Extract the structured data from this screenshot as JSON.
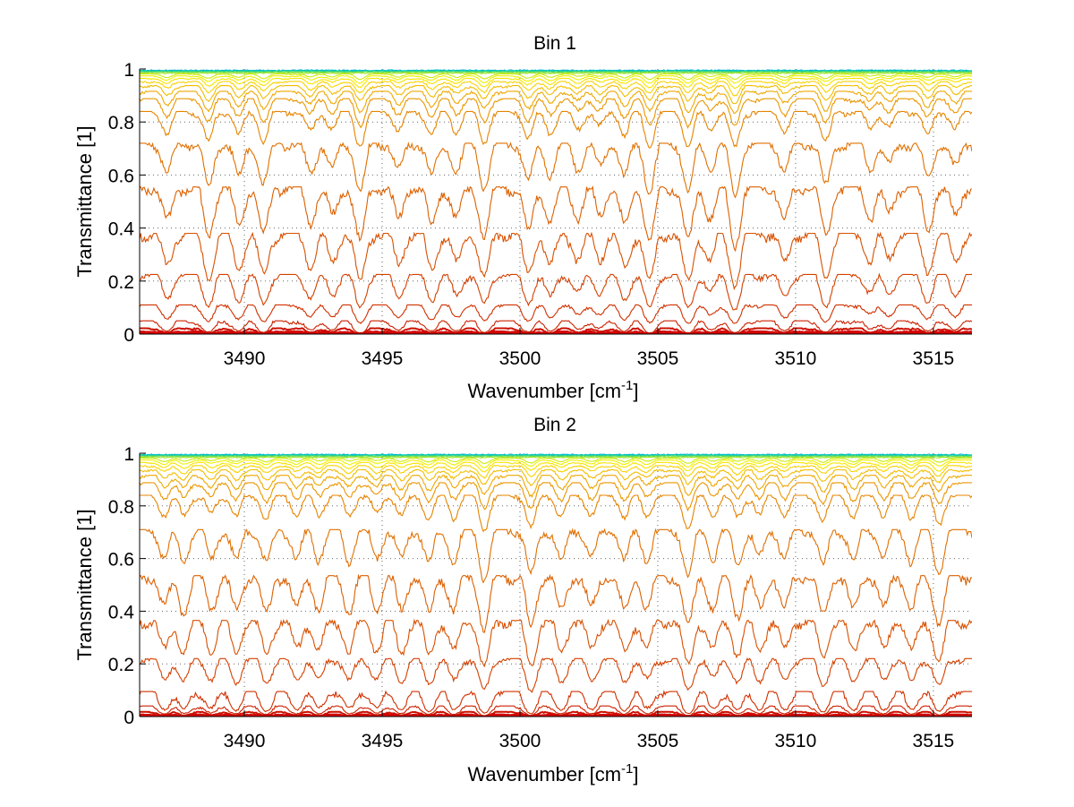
{
  "figure": {
    "background": "#ffffff",
    "grid": "dotted",
    "colormap": "jet-like (red at low transmittance, orange, yellow, green, cyan/blue near 1)"
  },
  "chart_data": [
    {
      "type": "line",
      "title": "Bin 1",
      "xlabel": "Wavenumber [cm",
      "xlabel_sup": "-1",
      "xlabel_close": "]",
      "ylabel": "Transmittance [1]",
      "xlim": [
        3486.2,
        3516.4
      ],
      "ylim": [
        0,
        1
      ],
      "xticks": [
        3490,
        3495,
        3500,
        3505,
        3510,
        3515
      ],
      "xtick_labels": [
        "3490",
        "3495",
        "3500",
        "3505",
        "3510",
        "3515"
      ],
      "yticks": [
        0,
        0.2,
        0.4,
        0.6,
        0.8,
        1
      ],
      "ytick_labels": [
        "0",
        "0.2",
        "0.4",
        "0.6",
        "0.8",
        "1"
      ],
      "grid": true,
      "absorption_lines_cm-1": [
        {
          "x": 3487.2,
          "d": 0.55
        },
        {
          "x": 3488.7,
          "d": 0.8
        },
        {
          "x": 3489.8,
          "d": 0.6
        },
        {
          "x": 3490.7,
          "d": 0.75
        },
        {
          "x": 3492.4,
          "d": 0.55
        },
        {
          "x": 3493.2,
          "d": 0.45
        },
        {
          "x": 3494.2,
          "d": 0.9
        },
        {
          "x": 3495.6,
          "d": 0.5
        },
        {
          "x": 3496.8,
          "d": 0.6
        },
        {
          "x": 3497.7,
          "d": 0.5
        },
        {
          "x": 3498.7,
          "d": 0.8
        },
        {
          "x": 3500.3,
          "d": 0.7
        },
        {
          "x": 3501.1,
          "d": 0.55
        },
        {
          "x": 3502.1,
          "d": 0.45
        },
        {
          "x": 3502.9,
          "d": 0.4
        },
        {
          "x": 3503.8,
          "d": 0.6
        },
        {
          "x": 3504.7,
          "d": 0.9
        },
        {
          "x": 3506.1,
          "d": 0.9
        },
        {
          "x": 3506.9,
          "d": 0.45
        },
        {
          "x": 3507.8,
          "d": 1.0
        },
        {
          "x": 3509.6,
          "d": 0.5
        },
        {
          "x": 3511.1,
          "d": 0.8
        },
        {
          "x": 3512.7,
          "d": 0.45
        },
        {
          "x": 3513.4,
          "d": 0.4
        },
        {
          "x": 3514.8,
          "d": 0.65
        },
        {
          "x": 3515.8,
          "d": 0.45
        }
      ],
      "series": [
        {
          "baseline": 0.997,
          "color": "#00b4dc"
        },
        {
          "baseline": 0.995,
          "color": "#00c8b4"
        },
        {
          "baseline": 0.993,
          "color": "#28d28c"
        },
        {
          "baseline": 0.99,
          "color": "#6edc50"
        },
        {
          "baseline": 0.986,
          "color": "#a0e628"
        },
        {
          "baseline": 0.981,
          "color": "#cdeb14"
        },
        {
          "baseline": 0.974,
          "color": "#f0f000"
        },
        {
          "baseline": 0.965,
          "color": "#f8e400"
        },
        {
          "baseline": 0.953,
          "color": "#f8d200"
        },
        {
          "baseline": 0.937,
          "color": "#f2bd00"
        },
        {
          "baseline": 0.916,
          "color": "#eea800"
        },
        {
          "baseline": 0.888,
          "color": "#ea9600"
        },
        {
          "baseline": 0.84,
          "color": "#e68400"
        },
        {
          "baseline": 0.72,
          "color": "#e07000"
        },
        {
          "baseline": 0.555,
          "color": "#dc6000"
        },
        {
          "baseline": 0.38,
          "color": "#d85000"
        },
        {
          "baseline": 0.225,
          "color": "#d44000"
        },
        {
          "baseline": 0.11,
          "color": "#d03000"
        },
        {
          "baseline": 0.05,
          "color": "#cc2000"
        },
        {
          "baseline": 0.022,
          "color": "#cc1000"
        },
        {
          "baseline": 0.01,
          "color": "#d00000"
        },
        {
          "baseline": 0.004,
          "color": "#e00000"
        }
      ]
    },
    {
      "type": "line",
      "title": "Bin 2",
      "xlabel": "Wavenumber [cm",
      "xlabel_sup": "-1",
      "xlabel_close": "]",
      "ylabel": "Transmittance [1]",
      "xlim": [
        3486.2,
        3516.4
      ],
      "ylim": [
        0,
        1
      ],
      "xticks": [
        3490,
        3495,
        3500,
        3505,
        3510,
        3515
      ],
      "xtick_labels": [
        "3490",
        "3495",
        "3500",
        "3505",
        "3510",
        "3515"
      ],
      "yticks": [
        0,
        0.2,
        0.4,
        0.6,
        0.8,
        1
      ],
      "ytick_labels": [
        "0",
        "0.2",
        "0.4",
        "0.6",
        "0.8",
        "1"
      ],
      "grid": true,
      "absorption_lines_cm-1": [
        {
          "x": 3487.1,
          "d": 0.5
        },
        {
          "x": 3487.8,
          "d": 0.55
        },
        {
          "x": 3488.8,
          "d": 0.5
        },
        {
          "x": 3489.7,
          "d": 0.55
        },
        {
          "x": 3490.8,
          "d": 0.6
        },
        {
          "x": 3491.9,
          "d": 0.5
        },
        {
          "x": 3492.7,
          "d": 0.5
        },
        {
          "x": 3493.8,
          "d": 0.55
        },
        {
          "x": 3494.8,
          "d": 0.5
        },
        {
          "x": 3495.7,
          "d": 0.55
        },
        {
          "x": 3496.7,
          "d": 0.6
        },
        {
          "x": 3497.6,
          "d": 0.55
        },
        {
          "x": 3498.7,
          "d": 0.9
        },
        {
          "x": 3500.4,
          "d": 0.85
        },
        {
          "x": 3501.5,
          "d": 0.55
        },
        {
          "x": 3502.6,
          "d": 0.5
        },
        {
          "x": 3503.8,
          "d": 0.55
        },
        {
          "x": 3504.6,
          "d": 0.5
        },
        {
          "x": 3506.1,
          "d": 0.85
        },
        {
          "x": 3507.0,
          "d": 0.5
        },
        {
          "x": 3507.9,
          "d": 0.6
        },
        {
          "x": 3508.7,
          "d": 0.5
        },
        {
          "x": 3509.6,
          "d": 0.5
        },
        {
          "x": 3511.0,
          "d": 0.65
        },
        {
          "x": 3512.1,
          "d": 0.55
        },
        {
          "x": 3513.2,
          "d": 0.5
        },
        {
          "x": 3514.2,
          "d": 0.55
        },
        {
          "x": 3515.2,
          "d": 0.75
        }
      ],
      "series": [
        {
          "baseline": 0.997,
          "color": "#00b4dc"
        },
        {
          "baseline": 0.995,
          "color": "#00c8b4"
        },
        {
          "baseline": 0.993,
          "color": "#28d28c"
        },
        {
          "baseline": 0.99,
          "color": "#6edc50"
        },
        {
          "baseline": 0.986,
          "color": "#a0e628"
        },
        {
          "baseline": 0.981,
          "color": "#cdeb14"
        },
        {
          "baseline": 0.974,
          "color": "#f0f000"
        },
        {
          "baseline": 0.965,
          "color": "#f8e400"
        },
        {
          "baseline": 0.953,
          "color": "#f8d200"
        },
        {
          "baseline": 0.937,
          "color": "#f2bd00"
        },
        {
          "baseline": 0.916,
          "color": "#eea800"
        },
        {
          "baseline": 0.888,
          "color": "#ea9600"
        },
        {
          "baseline": 0.84,
          "color": "#e68400"
        },
        {
          "baseline": 0.71,
          "color": "#e07000"
        },
        {
          "baseline": 0.535,
          "color": "#dc6000"
        },
        {
          "baseline": 0.365,
          "color": "#d85000"
        },
        {
          "baseline": 0.22,
          "color": "#d44000"
        },
        {
          "baseline": 0.095,
          "color": "#d03000"
        },
        {
          "baseline": 0.04,
          "color": "#cc2000"
        },
        {
          "baseline": 0.018,
          "color": "#cc1000"
        },
        {
          "baseline": 0.008,
          "color": "#d00000"
        },
        {
          "baseline": 0.003,
          "color": "#e00000"
        }
      ]
    }
  ]
}
